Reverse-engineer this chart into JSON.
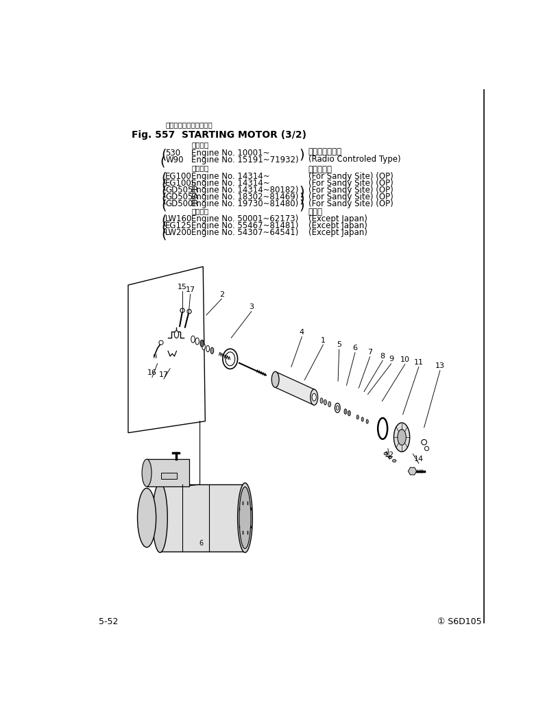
{
  "bg_color": "#ffffff",
  "text_color": "#000000",
  "title_japanese": "スターティング　モータ",
  "title_english": "Fig. 557  STARTING MOTOR (3/2)",
  "sec1_label": "適用号機",
  "sec1_models": [
    "530",
    "W90"
  ],
  "sec1_engines": [
    "Engine No. 10001~",
    "Engine No. 15191~71932)"
  ],
  "sec1_note_jp": "ラジコン装備車",
  "sec1_note_en": "(Radio Controled Type)",
  "sec2_label": "適用号機",
  "sec2_models": [
    "EG100",
    "EG100S",
    "GD505R",
    "GD505A",
    "GD500R"
  ],
  "sec2_engines": [
    "Engine No. 14314~",
    "Engine No. 14314~",
    "Engine No. 14314~80182)",
    "Engine No. 18302~81469)",
    "Engine No. 19730~81480)"
  ],
  "sec2_note_jp": "砂塵地仕様",
  "sec2_notes_en": [
    "(For Sandy Site) (OP)",
    "(For Sandy Site) (OP)",
    "(For Sandy Site) (OP)",
    "(For Sandy Site) (OP)",
    "(For Sandy Site) (OP)"
  ],
  "sec3_label": "適用号機",
  "sec3_models": [
    "LW160",
    "EG125",
    "LW200"
  ],
  "sec3_engines": [
    "Engine No. 50001~62173)",
    "Engine No. 55467~81481)",
    "Engine No. 54307~64541)"
  ],
  "sec3_note_jp": "海外向",
  "sec3_notes_en": [
    "(Except Japan)",
    "(Except Japan)",
    "(Except Japan)"
  ],
  "footer_left": "5-52",
  "footer_right": "① S6D105"
}
